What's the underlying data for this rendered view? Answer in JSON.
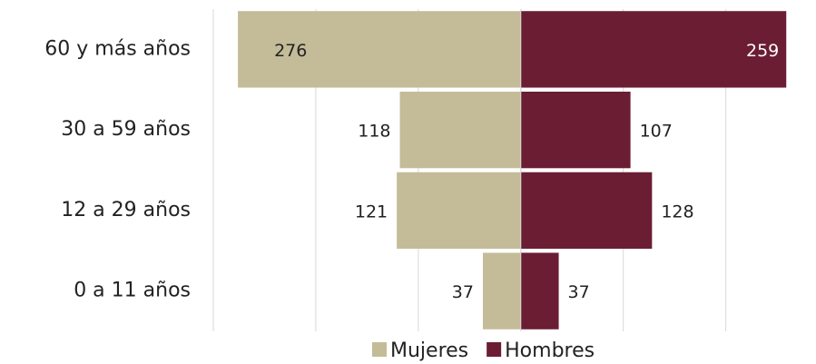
{
  "chart_data": {
    "type": "pyramid",
    "categories": [
      "60 y más años",
      "30 a 59 años",
      "12 a 29 años",
      "0 a 11 años"
    ],
    "series": [
      {
        "name": "Mujeres",
        "color": "#c4bc98",
        "values": [
          276,
          118,
          121,
          37
        ]
      },
      {
        "name": "Hombres",
        "color": "#6b1d33",
        "values": [
          259,
          107,
          128,
          37
        ]
      }
    ],
    "xlim": [
      -300,
      288
    ],
    "xticks": [
      -300,
      -200,
      -100,
      0,
      100,
      200
    ],
    "grid": true,
    "legend": "bottom"
  }
}
